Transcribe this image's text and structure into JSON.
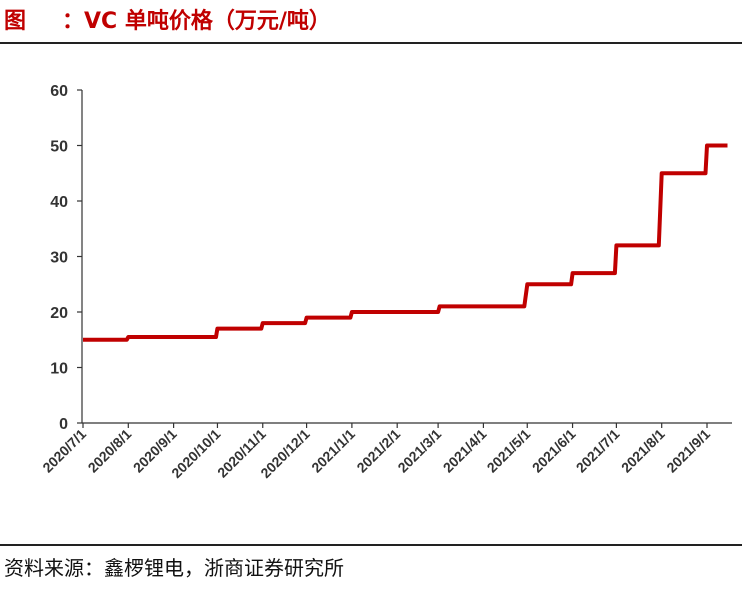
{
  "header": {
    "prefix": "图",
    "title": "：VC 单吨价格（万元/吨）"
  },
  "footer": {
    "source": "资料来源：鑫椤锂电，浙商证券研究所"
  },
  "colors": {
    "line": "#c00000",
    "title": "#c00000",
    "axis": "#333333"
  },
  "chart_data": {
    "type": "line",
    "step": true,
    "title": "VC 单吨价格（万元/吨）",
    "xlabel": "",
    "ylabel": "",
    "ylim": [
      0,
      60
    ],
    "yticks": [
      0,
      10,
      20,
      30,
      40,
      50,
      60
    ],
    "grid": false,
    "x_tick_labels": [
      "2020/7/1",
      "2020/8/1",
      "2020/9/1",
      "2020/10/1",
      "2020/11/1",
      "2020/12/1",
      "2021/1/1",
      "2021/2/1",
      "2021/3/1",
      "2021/4/1",
      "2021/5/1",
      "2021/6/1",
      "2021/7/1",
      "2021/8/1",
      "2021/9/1"
    ],
    "series": [
      {
        "name": "",
        "x": [
          "2020/7/1",
          "2020/7/31",
          "2020/8/1",
          "2020/9/30",
          "2020/10/1",
          "2020/10/31",
          "2020/11/1",
          "2020/11/30",
          "2020/12/1",
          "2020/12/31",
          "2021/1/1",
          "2021/3/1",
          "2021/3/2",
          "2021/4/29",
          "2021/5/1",
          "2021/5/31",
          "2021/6/1",
          "2021/6/30",
          "2021/7/1",
          "2021/7/30",
          "2021/8/1",
          "2021/8/31",
          "2021/9/1",
          "2021/9/15"
        ],
        "values": [
          15,
          15,
          15.5,
          15.5,
          17,
          17,
          18,
          18,
          19,
          19,
          20,
          20,
          21,
          21,
          25,
          25,
          27,
          27,
          32,
          32,
          45,
          45,
          50,
          50
        ]
      }
    ]
  }
}
